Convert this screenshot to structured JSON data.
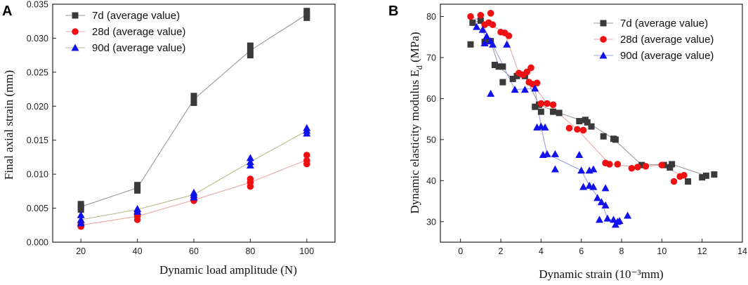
{
  "colors": {
    "d7": "#3a3a3a",
    "d28": "#ee1111",
    "d90": "#1111ee",
    "line_d7": "#999999",
    "line_d28": "#e8a8a8",
    "line_d90": "#9aa0e6",
    "line_d90_A": "#b8b888"
  },
  "chart_data": [
    {
      "panel": "A",
      "type": "scatter",
      "xlabel": "Dynamic load amplitude (N)",
      "ylabel": "Final axial strain (mm)",
      "xlim": [
        10,
        110
      ],
      "ylim": [
        0,
        0.035
      ],
      "xticks": [
        20,
        40,
        60,
        80,
        100
      ],
      "yticks": [
        0.0,
        0.005,
        0.01,
        0.015,
        0.02,
        0.025,
        0.03,
        0.035
      ],
      "ytick_labels": [
        "0.000",
        "0.005",
        "0.010",
        "0.015",
        "0.020",
        "0.025",
        "0.030",
        "0.035"
      ],
      "legend": [
        "7d (average value)",
        "28d (average value)",
        "90d (average value)"
      ],
      "series": [
        {
          "name": "7d (average value)",
          "marker": "square",
          "points": [
            [
              20,
              0.0048
            ],
            [
              20,
              0.0052
            ],
            [
              20,
              0.0056
            ],
            [
              40,
              0.0076
            ],
            [
              40,
              0.008
            ],
            [
              40,
              0.0084
            ],
            [
              60,
              0.0205
            ],
            [
              60,
              0.021
            ],
            [
              60,
              0.0215
            ],
            [
              80,
              0.0275
            ],
            [
              80,
              0.0282
            ],
            [
              80,
              0.0289
            ],
            [
              100,
              0.033
            ],
            [
              100,
              0.0335
            ],
            [
              100,
              0.034
            ]
          ],
          "line": [
            [
              20,
              0.0052
            ],
            [
              40,
              0.008
            ],
            [
              60,
              0.021
            ],
            [
              80,
              0.0282
            ],
            [
              100,
              0.0335
            ]
          ]
        },
        {
          "name": "28d (average value)",
          "marker": "circle",
          "points": [
            [
              20,
              0.0023
            ],
            [
              20,
              0.0026
            ],
            [
              40,
              0.0033
            ],
            [
              40,
              0.0038
            ],
            [
              40,
              0.0042
            ],
            [
              60,
              0.0061
            ],
            [
              60,
              0.0063
            ],
            [
              80,
              0.0082
            ],
            [
              80,
              0.0088
            ],
            [
              80,
              0.0093
            ],
            [
              100,
              0.0115
            ],
            [
              100,
              0.012
            ],
            [
              100,
              0.0128
            ]
          ],
          "line": [
            [
              20,
              0.0025
            ],
            [
              40,
              0.0038
            ],
            [
              60,
              0.0062
            ],
            [
              80,
              0.0088
            ],
            [
              100,
              0.0121
            ]
          ]
        },
        {
          "name": "90d (average value)",
          "marker": "triangle",
          "points": [
            [
              20,
              0.0028
            ],
            [
              20,
              0.0033
            ],
            [
              20,
              0.004
            ],
            [
              40,
              0.0045
            ],
            [
              40,
              0.0049
            ],
            [
              60,
              0.0066
            ],
            [
              60,
              0.007
            ],
            [
              60,
              0.0073
            ],
            [
              80,
              0.0113
            ],
            [
              80,
              0.0118
            ],
            [
              80,
              0.0124
            ],
            [
              100,
              0.016
            ],
            [
              100,
              0.0164
            ],
            [
              100,
              0.0168
            ]
          ],
          "line": [
            [
              20,
              0.0033
            ],
            [
              40,
              0.0048
            ],
            [
              60,
              0.007
            ],
            [
              80,
              0.0118
            ],
            [
              100,
              0.0164
            ]
          ]
        }
      ]
    },
    {
      "panel": "B",
      "type": "scatter",
      "xlabel": "Dynamic strain (10⁻³mm)",
      "ylabel": "Dynamic elasticity modulus E",
      "ylabel_sub": "d",
      "ylabel_unit": " (MPa)",
      "xlim": [
        -1,
        14
      ],
      "ylim": [
        25,
        83
      ],
      "xticks": [
        0,
        2,
        4,
        6,
        8,
        10,
        12,
        14
      ],
      "yticks": [
        30,
        40,
        50,
        60,
        70,
        80
      ],
      "legend": [
        "7d (average value)",
        "28d (average value)",
        "90d (average value)"
      ],
      "series": [
        {
          "name": "7d (average value)",
          "marker": "square",
          "points": [
            [
              0.5,
              73.2
            ],
            [
              0.6,
              78.5
            ],
            [
              1.0,
              79.0
            ],
            [
              1.2,
              73.8
            ],
            [
              1.5,
              74.0
            ],
            [
              1.7,
              68.2
            ],
            [
              1.9,
              67.8
            ],
            [
              2.1,
              67.8
            ],
            [
              2.1,
              64.0
            ],
            [
              2.6,
              64.8
            ],
            [
              2.8,
              65.5
            ],
            [
              3.2,
              65.5
            ],
            [
              3.7,
              58.0
            ],
            [
              3.9,
              58.5
            ],
            [
              4.0,
              56.8
            ],
            [
              4.6,
              56.8
            ],
            [
              4.9,
              56.5
            ],
            [
              5.9,
              54.5
            ],
            [
              6.2,
              54.8
            ],
            [
              6.3,
              54.2
            ],
            [
              6.5,
              53.2
            ],
            [
              7.1,
              50.8
            ],
            [
              7.6,
              50.2
            ],
            [
              7.7,
              50.0
            ],
            [
              9.0,
              43.8
            ],
            [
              10.1,
              43.8
            ],
            [
              10.4,
              43.2
            ],
            [
              10.5,
              44.0
            ],
            [
              11.3,
              39.8
            ],
            [
              12.0,
              40.8
            ],
            [
              12.2,
              41.2
            ],
            [
              12.6,
              41.5
            ]
          ],
          "line": [
            [
              0.6,
              78.5
            ],
            [
              1.0,
              79.0
            ],
            [
              1.5,
              74.0
            ],
            [
              1.9,
              67.8
            ],
            [
              2.6,
              64.8
            ],
            [
              3.2,
              65.5
            ],
            [
              3.9,
              58.5
            ],
            [
              4.9,
              56.5
            ],
            [
              6.3,
              54.2
            ],
            [
              7.6,
              50.2
            ],
            [
              9.0,
              43.8
            ],
            [
              10.5,
              44.0
            ],
            [
              12.2,
              41.2
            ]
          ]
        },
        {
          "name": "28d (average value)",
          "marker": "circle",
          "points": [
            [
              0.5,
              80.0
            ],
            [
              1.0,
              80.3
            ],
            [
              1.2,
              78.0
            ],
            [
              1.4,
              78.5
            ],
            [
              1.5,
              80.8
            ],
            [
              1.6,
              78.0
            ],
            [
              2.0,
              76.2
            ],
            [
              2.2,
              76.0
            ],
            [
              2.4,
              75.3
            ],
            [
              2.9,
              66.2
            ],
            [
              3.1,
              65.8
            ],
            [
              3.3,
              66.5
            ],
            [
              3.5,
              67.5
            ],
            [
              3.4,
              64.0
            ],
            [
              3.6,
              63.5
            ],
            [
              3.8,
              63.8
            ],
            [
              4.0,
              58.8
            ],
            [
              4.3,
              58.8
            ],
            [
              4.6,
              58.5
            ],
            [
              5.4,
              52.8
            ],
            [
              5.8,
              52.5
            ],
            [
              6.1,
              52.3
            ],
            [
              7.2,
              44.3
            ],
            [
              7.4,
              44.0
            ],
            [
              7.8,
              44.0
            ],
            [
              8.5,
              43.0
            ],
            [
              8.8,
              43.3
            ],
            [
              9.2,
              43.5
            ],
            [
              10.0,
              43.8
            ],
            [
              10.6,
              39.8
            ],
            [
              10.9,
              41.0
            ],
            [
              11.1,
              41.3
            ]
          ],
          "line": [
            [
              0.5,
              80.0
            ],
            [
              1.5,
              78.0
            ],
            [
              2.2,
              76.0
            ],
            [
              2.9,
              66.2
            ],
            [
              3.5,
              64.0
            ],
            [
              4.3,
              58.8
            ],
            [
              5.8,
              52.5
            ],
            [
              7.4,
              44.0
            ],
            [
              8.8,
              43.3
            ],
            [
              10.0,
              43.8
            ],
            [
              11.0,
              41.2
            ]
          ]
        },
        {
          "name": "90d (average value)",
          "marker": "triangle",
          "points": [
            [
              0.8,
              77.5
            ],
            [
              1.1,
              76.8
            ],
            [
              1.3,
              75.2
            ],
            [
              1.2,
              73.5
            ],
            [
              1.5,
              74.0
            ],
            [
              1.6,
              73.2
            ],
            [
              1.5,
              61.2
            ],
            [
              2.3,
              73.2
            ],
            [
              2.7,
              62.2
            ],
            [
              3.2,
              62.2
            ],
            [
              3.7,
              62.5
            ],
            [
              3.8,
              53.0
            ],
            [
              4.0,
              53.2
            ],
            [
              4.2,
              53.0
            ],
            [
              4.1,
              46.3
            ],
            [
              4.3,
              46.5
            ],
            [
              4.7,
              46.5
            ],
            [
              4.7,
              42.8
            ],
            [
              5.9,
              46.3
            ],
            [
              6.0,
              42.5
            ],
            [
              6.4,
              42.5
            ],
            [
              6.6,
              42.8
            ],
            [
              6.1,
              38.5
            ],
            [
              6.4,
              38.8
            ],
            [
              6.6,
              38.5
            ],
            [
              6.8,
              35.8
            ],
            [
              7.0,
              34.8
            ],
            [
              7.2,
              34.0
            ],
            [
              6.9,
              30.5
            ],
            [
              7.3,
              30.8
            ],
            [
              7.6,
              30.5
            ],
            [
              7.7,
              29.3
            ],
            [
              7.9,
              30.2
            ],
            [
              7.2,
              38.2
            ],
            [
              8.3,
              31.5
            ],
            [
              7.8,
              30.0
            ]
          ],
          "line": [
            [
              0.8,
              77.5
            ],
            [
              1.3,
              75.2
            ],
            [
              1.6,
              73.2
            ],
            [
              2.7,
              62.2
            ],
            [
              3.7,
              62.5
            ],
            [
              4.0,
              53.2
            ],
            [
              4.3,
              46.5
            ],
            [
              6.0,
              42.5
            ],
            [
              6.4,
              38.8
            ],
            [
              7.0,
              34.8
            ],
            [
              7.3,
              30.8
            ],
            [
              7.8,
              30.0
            ]
          ]
        }
      ]
    }
  ]
}
